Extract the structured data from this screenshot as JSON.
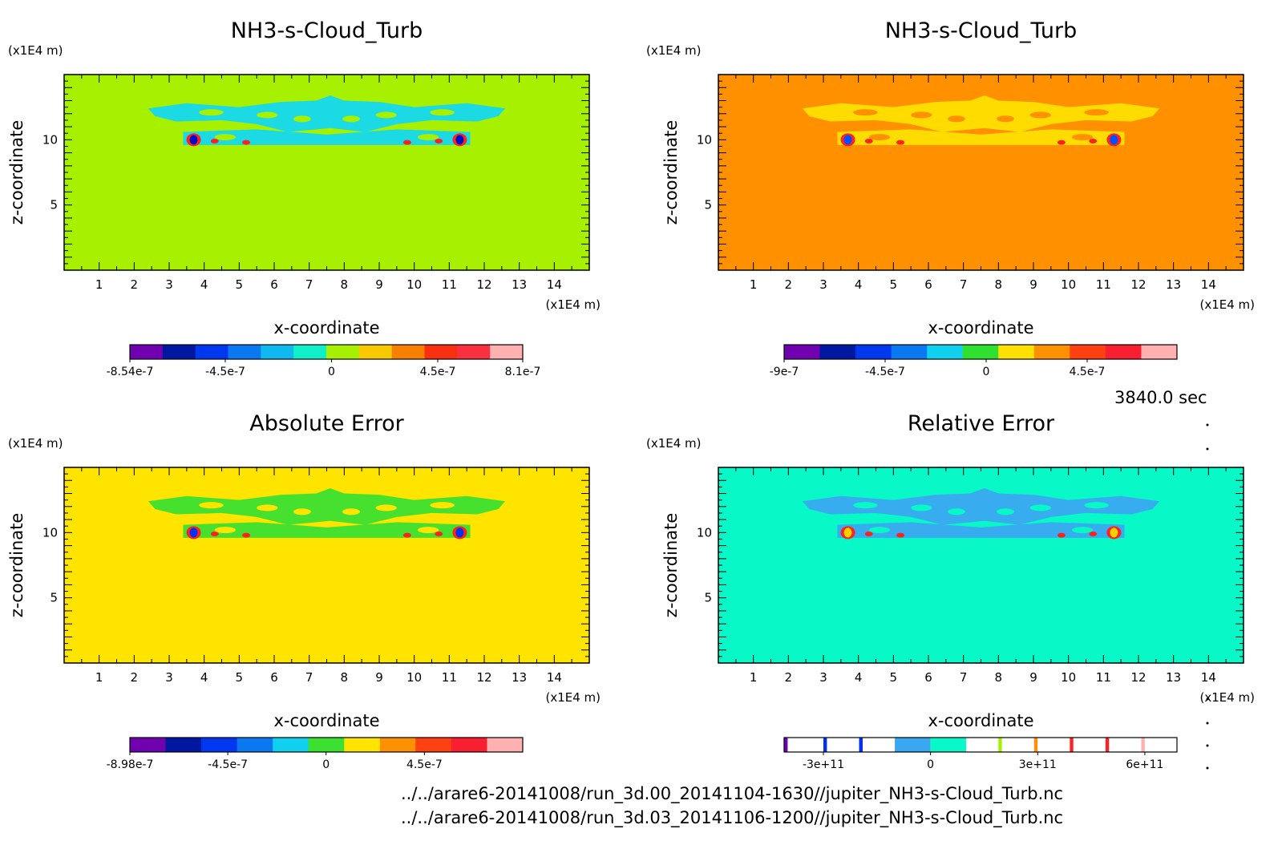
{
  "chart_data": [
    {
      "type": "heatmap",
      "panel": "top-left",
      "title": "NH3-s-Cloud_Turb",
      "xlabel": "x-coordinate",
      "ylabel": "z-coordinate",
      "x_unit": "(x1E4 m)",
      "y_unit": "(x1E4 m)",
      "xlim": [
        0,
        15
      ],
      "ylim": [
        0,
        15
      ],
      "xticks": [
        "1",
        "2",
        "3",
        "4",
        "5",
        "6",
        "7",
        "8",
        "9",
        "10",
        "11",
        "12",
        "13",
        "14"
      ],
      "yticks": [
        "5",
        "10"
      ],
      "background_color": "#a6f000",
      "structure_colors": [
        "#14d8f0",
        "#ff2020",
        "#0000c8"
      ],
      "colorbar": {
        "colors": [
          "#7000b0",
          "#0018a0",
          "#0038f0",
          "#0a78f0",
          "#10b8f0",
          "#10f0c8",
          "#a6f000",
          "#f8c800",
          "#f88000",
          "#f83010",
          "#f83040",
          "#ffb0b0"
        ],
        "labels": [
          "-8.54e-7",
          "-4.5e-7",
          "0",
          "4.5e-7",
          "8.1e-7"
        ],
        "label_values": [
          -8.54e-07,
          -4.5e-07,
          0,
          4.5e-07,
          8.1e-07
        ],
        "range": [
          -8.54e-07,
          8.1e-07
        ]
      }
    },
    {
      "type": "heatmap",
      "panel": "top-right",
      "title": "NH3-s-Cloud_Turb",
      "xlabel": "x-coordinate",
      "ylabel": "z-coordinate",
      "x_unit": "(x1E4 m)",
      "y_unit": "(x1E4 m)",
      "xlim": [
        0,
        15
      ],
      "ylim": [
        0,
        15
      ],
      "xticks": [
        "1",
        "2",
        "3",
        "4",
        "5",
        "6",
        "7",
        "8",
        "9",
        "10",
        "11",
        "12",
        "13",
        "14"
      ],
      "yticks": [
        "5",
        "10"
      ],
      "background_color": "#ff9000",
      "structure_colors": [
        "#ffe000",
        "#ff2020",
        "#0050ff"
      ],
      "colorbar": {
        "colors": [
          "#7000b0",
          "#0018a0",
          "#0038f0",
          "#0a78f0",
          "#10d0f0",
          "#30e030",
          "#ffe000",
          "#ff9000",
          "#ff4010",
          "#f82030",
          "#ffb0b0"
        ],
        "labels": [
          "-9e-7",
          "-4.5e-7",
          "0",
          "4.5e-7"
        ],
        "label_values": [
          -9e-07,
          -4.5e-07,
          0,
          4.5e-07
        ],
        "range": [
          -9e-07,
          8.5e-07
        ]
      }
    },
    {
      "type": "heatmap",
      "panel": "bottom-left",
      "title": "Absolute Error",
      "xlabel": "x-coordinate",
      "ylabel": "z-coordinate",
      "x_unit": "(x1E4 m)",
      "y_unit": "(x1E4 m)",
      "xlim": [
        0,
        15
      ],
      "ylim": [
        0,
        15
      ],
      "xticks": [
        "1",
        "2",
        "3",
        "4",
        "5",
        "6",
        "7",
        "8",
        "9",
        "10",
        "11",
        "12",
        "13",
        "14"
      ],
      "yticks": [
        "5",
        "10"
      ],
      "background_color": "#ffe400",
      "structure_colors": [
        "#3ce030",
        "#ff2020",
        "#0030f0"
      ],
      "colorbar": {
        "colors": [
          "#7000b0",
          "#0018a0",
          "#0038f0",
          "#0a78f0",
          "#10d0f0",
          "#3ce030",
          "#ffe400",
          "#ff9000",
          "#ff4010",
          "#f82030",
          "#ffb0b0"
        ],
        "labels": [
          "-8.98e-7",
          "-4.5e-7",
          "0",
          "4.5e-7"
        ],
        "label_values": [
          -8.98e-07,
          -4.5e-07,
          0,
          4.5e-07
        ],
        "range": [
          -8.98e-07,
          9e-07
        ]
      }
    },
    {
      "type": "heatmap",
      "panel": "bottom-right",
      "title": "Relative Error",
      "xlabel": "x-coordinate",
      "ylabel": "z-coordinate",
      "x_unit": "(x1E4 m)",
      "y_unit": "(x1E4 m)",
      "xlim": [
        0,
        15
      ],
      "ylim": [
        0,
        15
      ],
      "xticks": [
        "1",
        "2",
        "3",
        "4",
        "5",
        "6",
        "7",
        "8",
        "9",
        "10",
        "11",
        "12",
        "13",
        "14"
      ],
      "yticks": [
        "5",
        "10"
      ],
      "background_color": "#08f8c8",
      "structure_colors": [
        "#3aa8f0",
        "#ff2020",
        "#f8d000"
      ],
      "colorbar": {
        "colors": [
          "#7000b0",
          "#ffffff",
          "#0030f0",
          "#ffffff",
          "#0030f0",
          "#ffffff",
          "#3aa8f0",
          "#08f8c8",
          "#ffffff",
          "#a6f000",
          "#ffffff",
          "#ff9000",
          "#ffffff",
          "#ff2020",
          "#ffffff",
          "#ff2020",
          "#ffffff",
          "#ffb0b0",
          "#ffffff"
        ],
        "color_edges": [
          -410000000000.0,
          -400000000000.0,
          -300000000000.0,
          -290000000000.0,
          -200000000000.0,
          -190000000000.0,
          -100000000000.0,
          0,
          100000000000.0,
          190000000000.0,
          200000000000.0,
          290000000000.0,
          300000000000.0,
          390000000000.0,
          400000000000.0,
          490000000000.0,
          500000000000.0,
          590000000000.0,
          600000000000.0,
          690000000000.0
        ],
        "labels": [
          "-3e+11",
          "0",
          "3e+11",
          "6e+11"
        ],
        "label_values": [
          -300000000000.0,
          0,
          300000000000.0,
          600000000000.0
        ],
        "range": [
          -410000000000.0,
          690000000000.0
        ]
      }
    }
  ],
  "time_label": "3840.0 sec",
  "footer": {
    "file1": "../../arare6-20141008/run_3d.00_20141104-1630//jupiter_NH3-s-Cloud_Turb.nc",
    "file2": "../../arare6-20141008/run_3d.03_20141106-1200//jupiter_NH3-s-Cloud_Turb.nc"
  }
}
